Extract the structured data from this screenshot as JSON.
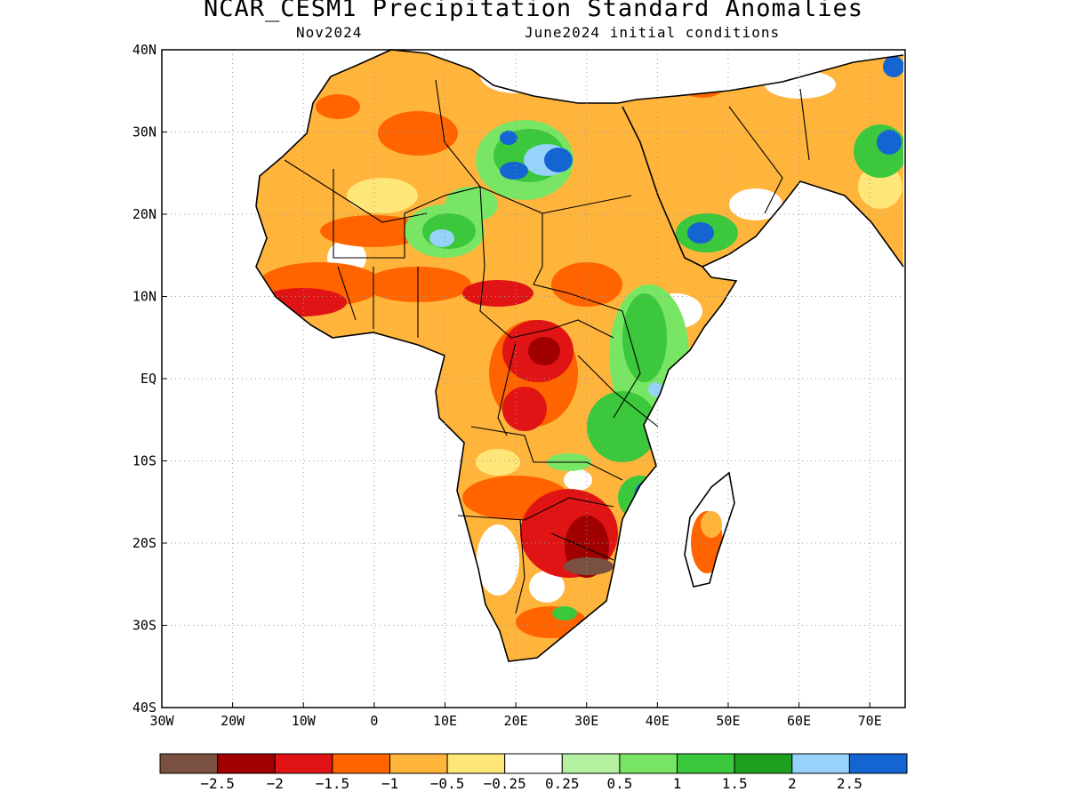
{
  "title": "NCAR_CESM1 Precipitation Standard Anomalies",
  "subtitle_left": "Nov2024",
  "subtitle_right": "June2024 initial conditions",
  "map": {
    "lon_ticks": [
      "30W",
      "20W",
      "10W",
      "0",
      "10E",
      "20E",
      "30E",
      "40E",
      "50E",
      "60E",
      "70E"
    ],
    "lat_ticks": [
      "40N",
      "30N",
      "20N",
      "10N",
      "EQ",
      "10S",
      "20S",
      "30S",
      "40S"
    ]
  },
  "legend": {
    "colors": [
      "#7a5040",
      "#a00000",
      "#e01414",
      "#ff6400",
      "#ffb43c",
      "#ffe678",
      "#ffffff",
      "#b4f0a0",
      "#78e664",
      "#3cc83c",
      "#1ea01e",
      "#96d2fa",
      "#1464d2"
    ],
    "labels": [
      "−2.5",
      "−2",
      "−1.5",
      "−1",
      "−0.5",
      "−0.25",
      "0.25",
      "0.5",
      "1",
      "1.5",
      "2",
      "2.5"
    ]
  },
  "features": [
    {
      "name": "sahara-dry-anomaly",
      "value": -0.5
    },
    {
      "name": "west-africa-dry-anomaly",
      "value": -1.5
    },
    {
      "name": "central-africa-dry-anomaly",
      "value": -2
    },
    {
      "name": "southern-africa-dry-anomaly",
      "value": -2.5
    },
    {
      "name": "east-africa-wet-anomaly",
      "value": 1.5
    },
    {
      "name": "libya-egypt-wet-anomaly",
      "value": 2.5
    },
    {
      "name": "yemen-wet-anomaly",
      "value": 2.5
    },
    {
      "name": "madagascar-dry-anomaly",
      "value": -1
    }
  ]
}
